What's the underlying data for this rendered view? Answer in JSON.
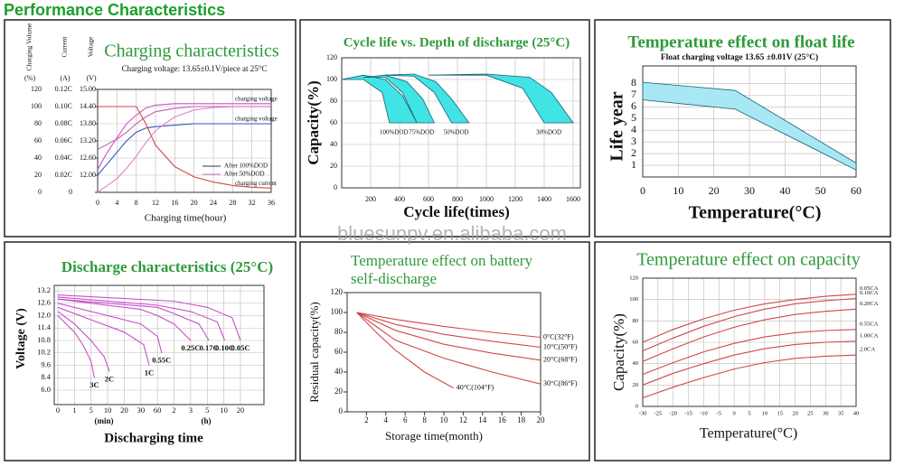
{
  "header": {
    "title": "Performance Characteristics"
  },
  "watermark": "bluesunpv.en.alibaba.com",
  "chart_data": [
    {
      "type": "line",
      "title": "Charging characteristics",
      "subtitle": "Charging voltage:  13.65±0.1V/piece at 25°C",
      "xlabel": "Charging time(hour)",
      "ylabel": "Charging Volume",
      "yunit": "(%)",
      "y3label": "Current",
      "y3unit": "(A)",
      "y2label": "Voltage",
      "y2unit": "(V)",
      "x": [
        0,
        1,
        2,
        4,
        6,
        8,
        10,
        12,
        16,
        20,
        24,
        28,
        32,
        36
      ],
      "xlim": [
        0,
        36
      ],
      "xticks": [
        0,
        4,
        8,
        12,
        16,
        20,
        24,
        28,
        32,
        36
      ],
      "ylim": [
        0,
        120
      ],
      "yticks": [
        0,
        20,
        40,
        60,
        80,
        100,
        120
      ],
      "y2lim": [
        11.4,
        15
      ],
      "y2ticks": [
        {
          "value": 12,
          "label": "12.00"
        },
        {
          "value": 12.6,
          "label": "12.60"
        },
        {
          "value": 13.2,
          "label": "13.20"
        },
        {
          "value": 13.8,
          "label": "13.80"
        },
        {
          "value": 14.4,
          "label": "14.40"
        },
        {
          "value": 15,
          "label": "15.00"
        }
      ],
      "y3lim": [
        0,
        0.12
      ],
      "y3ticks": [
        0,
        {
          "value": 0.02,
          "label": "0.02C"
        },
        {
          "value": 0.04,
          "label": "0.04C"
        },
        {
          "value": 0.06,
          "label": "0.06C"
        },
        {
          "value": 0.08,
          "label": "0.08C"
        },
        {
          "value": 0.1,
          "label": "0.10C"
        },
        {
          "value": 0.12,
          "label": "0.12C"
        }
      ],
      "grid": true,
      "legend": [
        {
          "label": "After 100%DOD",
          "color": "#333333"
        },
        {
          "label": "After 50%DOD",
          "color": "#d070c8"
        }
      ],
      "series": [
        {
          "name": "charging voltage",
          "color": "#d050c8",
          "axis": "y2",
          "values": [
            12.2,
            12.5,
            12.8,
            13.3,
            13.8,
            14.1,
            14.35,
            14.45,
            14.5,
            14.5,
            14.5,
            14.5,
            14.5,
            14.5
          ]
        },
        {
          "name": "charging voltage",
          "color": "#3a50c0",
          "axis": "y2",
          "values": [
            12.0,
            12.2,
            12.4,
            12.8,
            13.2,
            13.5,
            13.65,
            13.7,
            13.75,
            13.8,
            13.8,
            13.8,
            13.8,
            13.8
          ]
        },
        {
          "name": "charging current",
          "color": "#d04848",
          "axis": "y3",
          "values": [
            0.1,
            0.1,
            0.1,
            0.1,
            0.1,
            0.1,
            0.08,
            0.055,
            0.03,
            0.018,
            0.012,
            0.008,
            0.006,
            0.005
          ]
        },
        {
          "color": "#e080d0",
          "values": [
            0,
            4,
            8,
            16,
            28,
            42,
            58,
            72,
            88,
            96,
            99,
            100,
            100,
            100
          ]
        },
        {
          "color": "#c060b0",
          "values": [
            50,
            53,
            56,
            62,
            70,
            80,
            88,
            94,
            98,
            100,
            100,
            100,
            100,
            100
          ]
        }
      ]
    },
    {
      "type": "band",
      "title": "Cycle life vs. Depth of discharge (25°C)",
      "xlabel": "Cycle life(times)",
      "ylabel": "Capacity(%)",
      "xlim": [
        0,
        1650
      ],
      "xticks": [
        200,
        400,
        600,
        800,
        1000,
        1200,
        1400,
        1600
      ],
      "ylim": [
        0,
        120
      ],
      "yticks": [
        0,
        20,
        40,
        60,
        80,
        100,
        120
      ],
      "grid": true,
      "color": "#40e4e4",
      "series": [
        {
          "name": "100%DOD",
          "x_upper": [
            0,
            150,
            300,
            420,
            520
          ],
          "upper": [
            100,
            104,
            100,
            85,
            60
          ],
          "x_lower": [
            0,
            150,
            280,
            330
          ],
          "lower": [
            100,
            100,
            88,
            60
          ]
        },
        {
          "name": "75%DOD",
          "x_upper": [
            150,
            300,
            450,
            560,
            640
          ],
          "upper": [
            102,
            104,
            98,
            82,
            60
          ],
          "x_lower": [
            150,
            300,
            420,
            520
          ],
          "lower": [
            102,
            102,
            88,
            60
          ]
        },
        {
          "name": "50%DOD",
          "x_upper": [
            300,
            500,
            650,
            760,
            880
          ],
          "upper": [
            104,
            105,
            98,
            82,
            60
          ],
          "x_lower": [
            300,
            500,
            640,
            760
          ],
          "lower": [
            104,
            103,
            88,
            60
          ]
        },
        {
          "name": "30%DOD",
          "x_upper": [
            600,
            1000,
            1300,
            1450,
            1600
          ],
          "upper": [
            104,
            105,
            102,
            88,
            60
          ],
          "x_lower": [
            600,
            1000,
            1250,
            1400
          ],
          "lower": [
            104,
            104,
            92,
            60
          ]
        }
      ]
    },
    {
      "type": "band",
      "title": "Temperature effect on float life",
      "subtitle": "Float charging voltage  13.65 ±0.01V (25°C)",
      "xlabel": "Temperature(°C)",
      "ylabel": "Life year",
      "xlim": [
        0,
        60
      ],
      "xticks": [
        0,
        10,
        20,
        30,
        40,
        50,
        60
      ],
      "ylim": [
        0,
        9.5
      ],
      "yticks": [
        1,
        2,
        3,
        4,
        5,
        6,
        7,
        8
      ],
      "grid": true,
      "color": "#a8e8f4",
      "series": [
        {
          "x": [
            0,
            26,
            60
          ],
          "upper": [
            8.1,
            7.4,
            1.2
          ],
          "lower": [
            6.6,
            5.8,
            0.6
          ]
        }
      ]
    },
    {
      "type": "line",
      "scale": "tick-spaced",
      "title": "Discharge characteristics (25°C)",
      "xlabel": "Discharging time",
      "xunits": [
        "(min)",
        "(h)"
      ],
      "ylabel": "Voltage  (V)",
      "xlim": [
        0,
        1200
      ],
      "xticks": [
        0,
        1,
        5,
        10,
        20,
        30,
        60,
        {
          "value": 120,
          "label": "2"
        },
        {
          "value": 180,
          "label": "3"
        },
        {
          "value": 300,
          "label": "5"
        },
        {
          "value": 600,
          "label": "10"
        },
        {
          "value": 1200,
          "label": "20"
        }
      ],
      "ylim": [
        6,
        13.2
      ],
      "yticks": [
        {
          "value": 6,
          "label": "6.0"
        },
        8.4,
        9.6,
        10.2,
        10.8,
        11.4,
        {
          "value": 12,
          "label": "12.0"
        },
        12.6,
        13.2
      ],
      "grid": true,
      "color": "#c850c8",
      "series": [
        {
          "name": "3C",
          "x": [
            0,
            1,
            3,
            5,
            6
          ],
          "values": [
            12.0,
            11.2,
            10.6,
            9.8,
            8.4
          ]
        },
        {
          "name": "2C",
          "x": [
            0,
            1,
            5,
            9,
            11
          ],
          "values": [
            12.2,
            11.6,
            10.8,
            10.0,
            9.0
          ]
        },
        {
          "name": "1C",
          "x": [
            0,
            5,
            20,
            35,
            45
          ],
          "values": [
            12.4,
            11.8,
            11.2,
            10.6,
            9.6
          ]
        },
        {
          "name": "0.55C",
          "x": [
            0,
            10,
            30,
            60,
            75
          ],
          "values": [
            12.6,
            12.0,
            11.6,
            11.0,
            10.2
          ]
        },
        {
          "name": "0.25C",
          "x": [
            0,
            30,
            60,
            120,
            180
          ],
          "values": [
            12.8,
            12.3,
            12.0,
            11.6,
            10.8
          ]
        },
        {
          "name": "0.17C",
          "x": [
            0,
            60,
            120,
            240,
            330
          ],
          "values": [
            12.8,
            12.4,
            12.1,
            11.6,
            10.8
          ]
        },
        {
          "name": "0.10C",
          "x": [
            0,
            60,
            180,
            480,
            630
          ],
          "values": [
            12.9,
            12.5,
            12.2,
            11.7,
            10.8
          ]
        },
        {
          "name": "0.05C",
          "x": [
            0,
            120,
            300,
            900,
            1200
          ],
          "values": [
            13.0,
            12.7,
            12.4,
            11.9,
            10.8
          ]
        }
      ]
    },
    {
      "type": "line",
      "title": [
        "Temperature effect on battery",
        "self-discharge"
      ],
      "xlabel": "Storage time(month)",
      "ylabel": "Residual capacity(%)",
      "xlim": [
        0,
        20
      ],
      "xticks": [
        2,
        4,
        6,
        8,
        10,
        12,
        14,
        16,
        18,
        20
      ],
      "ylim": [
        0,
        120
      ],
      "yticks": [
        0,
        20,
        40,
        60,
        80,
        100,
        120
      ],
      "grid": false,
      "color": "#d04848",
      "series": [
        {
          "name": "0°C(32°F)",
          "x": [
            1,
            5,
            10,
            15,
            20
          ],
          "values": [
            100,
            93,
            86,
            80,
            75
          ]
        },
        {
          "name": "10°C(50°F)",
          "x": [
            1,
            5,
            10,
            15,
            20
          ],
          "values": [
            100,
            88,
            78,
            71,
            65
          ]
        },
        {
          "name": "20°C(68°F)",
          "x": [
            1,
            5,
            10,
            15,
            20
          ],
          "values": [
            100,
            82,
            68,
            59,
            52
          ]
        },
        {
          "name": "30°C(86°F)",
          "x": [
            1,
            5,
            10,
            15,
            20
          ],
          "values": [
            100,
            72,
            54,
            40,
            28
          ]
        },
        {
          "name": "40°C(104°F)",
          "x": [
            1,
            3,
            5,
            8,
            11
          ],
          "values": [
            100,
            80,
            62,
            40,
            24
          ]
        }
      ]
    },
    {
      "type": "line",
      "title": "Temperature effect on capacity",
      "xlabel": "Temperature(°C)",
      "ylabel": "Capacity(%)",
      "x": [
        -30,
        -20,
        -10,
        0,
        10,
        20,
        30,
        40
      ],
      "xlim": [
        -30,
        40
      ],
      "xticks": [
        -30,
        -25,
        -20,
        -15,
        -10,
        -5,
        0,
        5,
        10,
        15,
        20,
        25,
        30,
        35,
        40
      ],
      "ylim": [
        0,
        120
      ],
      "yticks": [
        0,
        20,
        40,
        60,
        80,
        100,
        120
      ],
      "grid": true,
      "color": "#d04848",
      "series": [
        {
          "name": "0.05CA",
          "values": [
            60,
            72,
            82,
            90,
            96,
            100,
            103,
            105
          ]
        },
        {
          "name": "0.10CA",
          "values": [
            52,
            64,
            75,
            84,
            91,
            96,
            99,
            101
          ]
        },
        {
          "name": "0.20CA",
          "values": [
            42,
            54,
            65,
            74,
            81,
            86,
            89,
            91
          ]
        },
        {
          "name": "0.55CA",
          "values": [
            30,
            41,
            51,
            59,
            65,
            69,
            71,
            72
          ]
        },
        {
          "name": "1.00CA",
          "values": [
            20,
            31,
            40,
            48,
            54,
            58,
            60,
            61
          ]
        },
        {
          "name": "2.0CA",
          "values": [
            8,
            18,
            27,
            35,
            41,
            45,
            47,
            48
          ]
        }
      ]
    }
  ]
}
